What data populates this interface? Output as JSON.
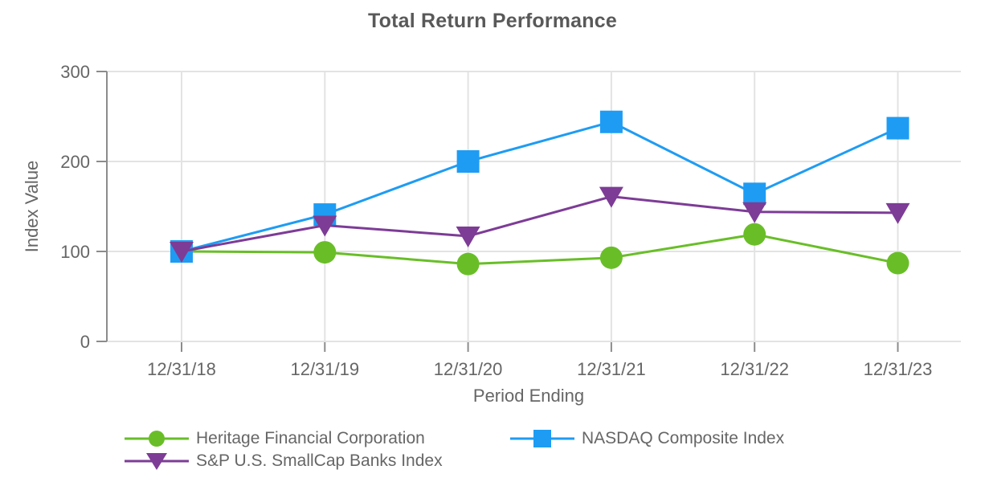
{
  "chart_data": {
    "type": "line",
    "title": "Total Return Performance",
    "xlabel": "Period Ending",
    "ylabel": "Index Value",
    "categories": [
      "12/31/18",
      "12/31/19",
      "12/31/20",
      "12/31/21",
      "12/31/22",
      "12/31/23"
    ],
    "ylim": [
      0,
      300
    ],
    "yticks": [
      0,
      100,
      200,
      300
    ],
    "grid": true,
    "legend_position": "bottom",
    "series": [
      {
        "name": "Heritage Financial Corporation",
        "marker": "circle",
        "color": "#69be28",
        "values": [
          100,
          99,
          86,
          93,
          119,
          87
        ]
      },
      {
        "name": "NASDAQ Composite Index",
        "marker": "square",
        "color": "#1e9cf3",
        "values": [
          100,
          141,
          200,
          244,
          164,
          237
        ]
      },
      {
        "name": "S&P U.S. SmallCap Banks Index",
        "marker": "triangle-down",
        "color": "#7d3c96",
        "values": [
          100,
          129,
          117,
          161,
          144,
          143
        ]
      }
    ]
  },
  "colors": {
    "title_text": "#595959",
    "axis_text": "#666666",
    "grid_line": "#e3e3e3",
    "axis_line": "#8c8c8c",
    "background": "#ffffff"
  }
}
